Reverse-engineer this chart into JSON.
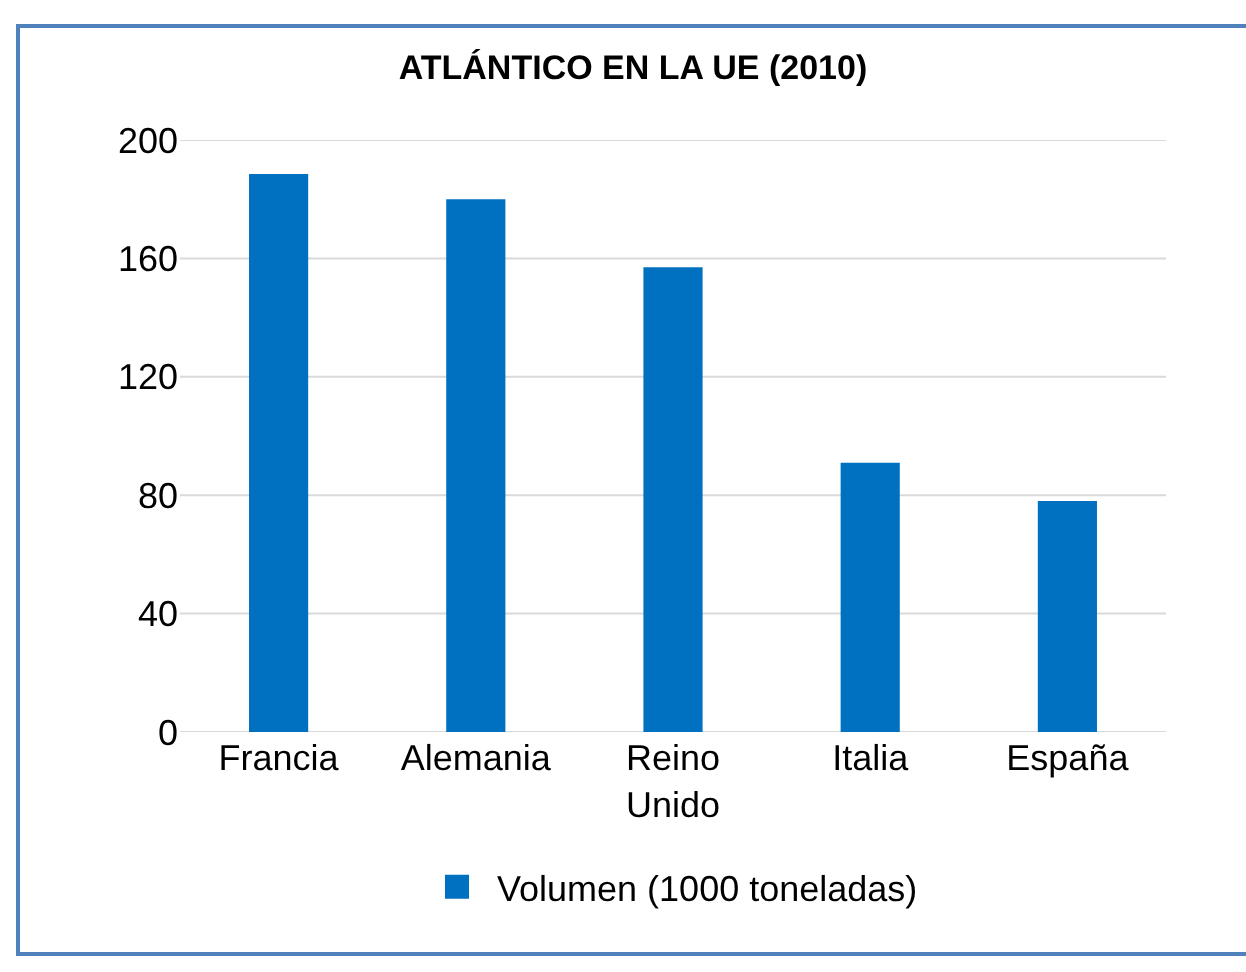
{
  "chart_data": {
    "type": "bar",
    "title": "ATLÁNTICO EN LA UE (2010)",
    "categories": [
      "Francia",
      "Alemania",
      "Reino Unido",
      "Italia",
      "España"
    ],
    "series": [
      {
        "name": "Volumen (1000 toneladas)",
        "color": "#0070c0",
        "values": [
          188.5,
          180,
          157,
          91,
          78
        ]
      }
    ],
    "ylim": [
      0,
      200
    ],
    "yticks": [
      0,
      40,
      80,
      120,
      160,
      200
    ],
    "grid": "y",
    "legend": "bottom"
  }
}
